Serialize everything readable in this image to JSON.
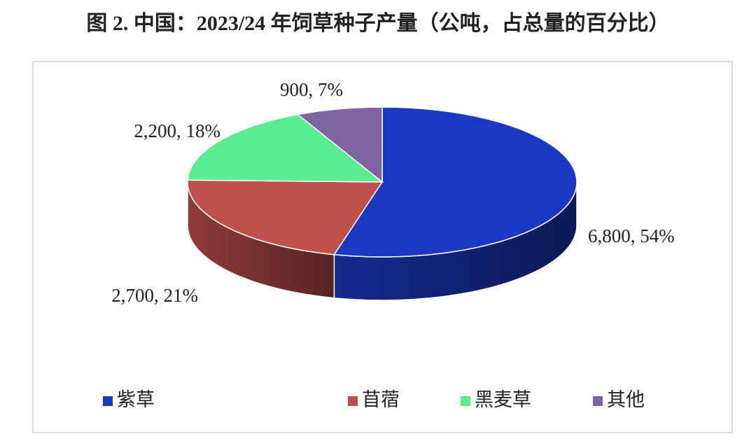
{
  "chart_data": {
    "type": "pie",
    "title": "图 2. 中国：2023/24 年饲草种子产量（公吨，占总量的百分比）",
    "categories": [
      "紫草",
      "苜蓿",
      "黑麦草",
      "其他"
    ],
    "values": [
      6800,
      2700,
      2200,
      900
    ],
    "value_labels": [
      "6,800, 54%",
      "2,700, 21%",
      "2,200, 18%",
      "900, 7%"
    ],
    "colors": [
      "#1a38c0",
      "#c0504d",
      "#5aec8f",
      "#8064a2"
    ],
    "legend": "bottom"
  }
}
